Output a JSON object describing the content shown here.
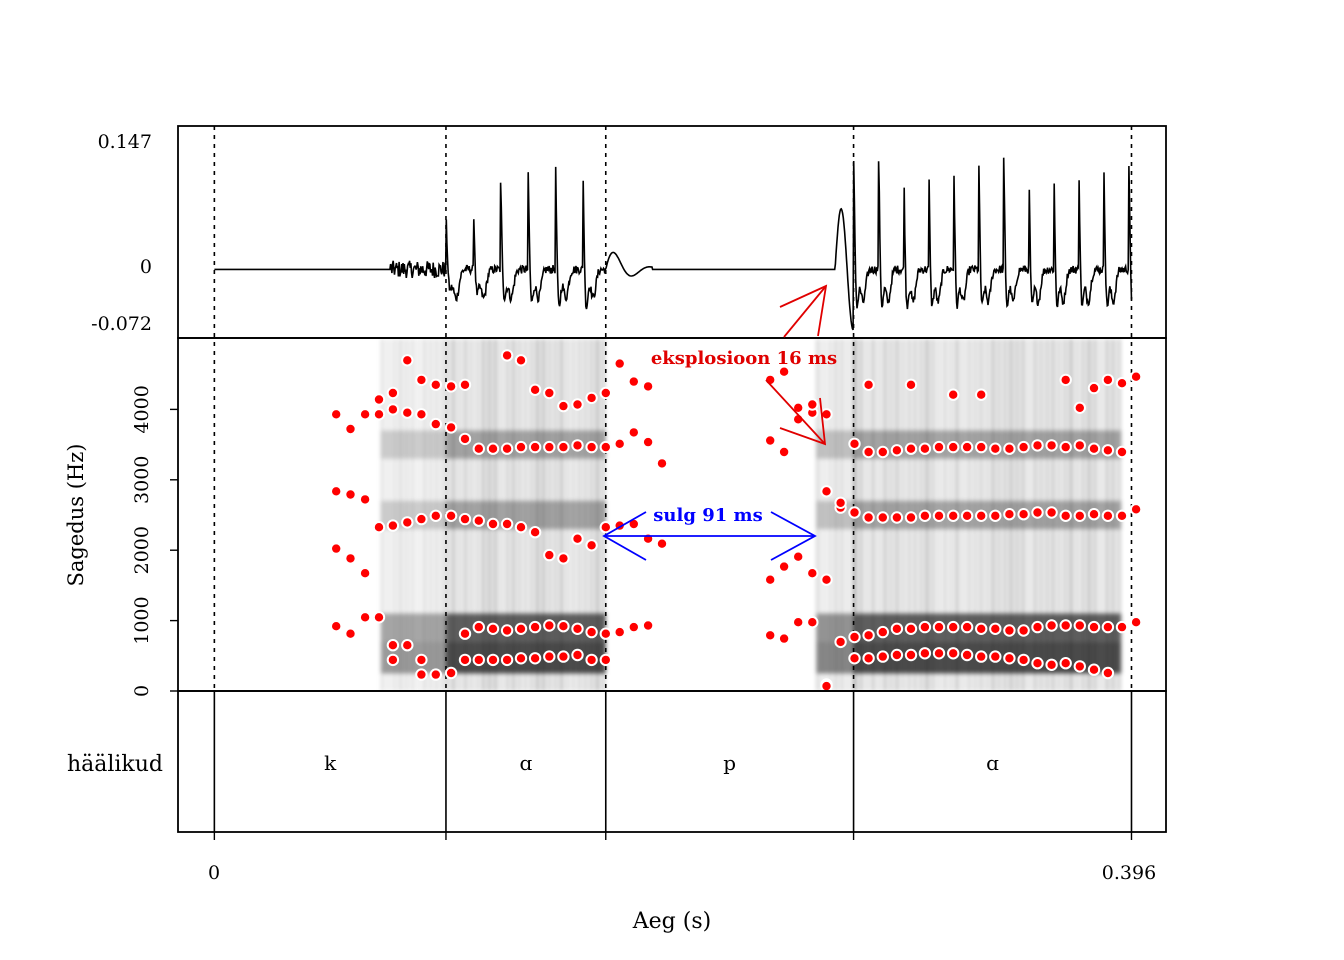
{
  "chart_data": {
    "type": "scatter",
    "description_panels": [
      "waveform",
      "spectrogram",
      "segmentation"
    ],
    "xlabel": "Aeg (s)",
    "xlim": [
      -0.0157,
      0.4109
    ],
    "x_tick_labels": [
      "0",
      "0.396"
    ],
    "x_ticks": [
      0,
      0.396
    ],
    "waveform": {
      "y_tick_labels": [
        "0.147",
        "0",
        "-0.072"
      ],
      "y_ticks": [
        0.147,
        0,
        -0.072
      ],
      "ylim": [
        -0.0793,
        0.1657
      ]
    },
    "spectrogram": {
      "ylabel": "Sagedus (Hz)",
      "ylim": [
        0,
        5000
      ],
      "y_ticks": [
        0,
        1000,
        2000,
        3000,
        4000
      ],
      "y_tick_labels": [
        "0",
        "1000",
        "2000",
        "3000",
        "4000"
      ],
      "formant_color": "#ff0000"
    },
    "segmentation": {
      "tier_label": "häälikud",
      "boundaries": [
        0,
        0.1,
        0.169,
        0.276,
        0.396
      ],
      "segments": [
        {
          "label": "k",
          "start": 0,
          "end": 0.1
        },
        {
          "label": "ɑ",
          "start": 0.1,
          "end": 0.169
        },
        {
          "label": "p",
          "start": 0.169,
          "end": 0.276
        },
        {
          "label": "ɑ",
          "start": 0.276,
          "end": 0.396
        }
      ]
    },
    "annotations": [
      {
        "text": "eksplosioon 16 ms",
        "color": "#e00000",
        "duration_ms": 16
      },
      {
        "text": "sulg 91 ms",
        "color": "#0000ff",
        "duration_ms": 91,
        "from": 0.169,
        "to": 0.26
      }
    ],
    "formants": {
      "F1": [
        [
          0.0526,
          921
        ],
        [
          0.0588,
          814
        ],
        [
          0.0651,
          1047
        ],
        [
          0.0711,
          1047
        ],
        [
          0.0771,
          651
        ],
        [
          0.0833,
          651
        ],
        [
          0.0894,
          442
        ],
        [
          0.0956,
          233
        ],
        [
          0.1022,
          256
        ],
        [
          0.1082,
          814
        ],
        [
          0.1142,
          907
        ],
        [
          0.1203,
          884
        ],
        [
          0.1264,
          860
        ],
        [
          0.1324,
          884
        ],
        [
          0.1385,
          907
        ],
        [
          0.1446,
          930
        ],
        [
          0.1507,
          921
        ],
        [
          0.1568,
          884
        ],
        [
          0.1629,
          837
        ],
        [
          0.169,
          814
        ],
        [
          0.175,
          837
        ],
        [
          0.1811,
          907
        ],
        [
          0.1873,
          930
        ],
        [
          0.24,
          791
        ],
        [
          0.246,
          744
        ],
        [
          0.2521,
          977
        ],
        [
          0.2582,
          977
        ],
        [
          0.2643,
          93
        ],
        [
          0.2704,
          698
        ],
        [
          0.2764,
          767
        ],
        [
          0.2825,
          791
        ],
        [
          0.2886,
          837
        ],
        [
          0.2947,
          884
        ],
        [
          0.3008,
          884
        ],
        [
          0.3068,
          907
        ],
        [
          0.3129,
          907
        ],
        [
          0.319,
          907
        ],
        [
          0.325,
          907
        ],
        [
          0.3311,
          884
        ],
        [
          0.3372,
          884
        ],
        [
          0.3433,
          860
        ],
        [
          0.3494,
          860
        ],
        [
          0.3554,
          907
        ],
        [
          0.3615,
          930
        ],
        [
          0.3676,
          930
        ],
        [
          0.3737,
          930
        ],
        [
          0.3798,
          907
        ],
        [
          0.3858,
          907
        ],
        [
          0.3919,
          907
        ],
        [
          0.398,
          977
        ]
      ],
      "F2": [
        [
          0.0526,
          2023
        ],
        [
          0.0588,
          1884
        ],
        [
          0.0651,
          1674
        ],
        [
          0.0711,
          2326
        ],
        [
          0.0771,
          2349
        ],
        [
          0.0833,
          2395
        ],
        [
          0.0894,
          2442
        ],
        [
          0.0956,
          2488
        ],
        [
          0.1022,
          2488
        ],
        [
          0.1082,
          2442
        ],
        [
          0.1142,
          2419
        ],
        [
          0.1203,
          2372
        ],
        [
          0.1264,
          2372
        ],
        [
          0.1324,
          2326
        ],
        [
          0.1385,
          2256
        ],
        [
          0.1446,
          1930
        ],
        [
          0.1507,
          1884
        ],
        [
          0.1568,
          2163
        ],
        [
          0.1629,
          2070
        ],
        [
          0.169,
          2326
        ],
        [
          0.175,
          2349
        ],
        [
          0.1811,
          2372
        ],
        [
          0.1873,
          2163
        ],
        [
          0.1933,
          2093
        ],
        [
          0.24,
          1581
        ],
        [
          0.246,
          1767
        ],
        [
          0.2521,
          1907
        ],
        [
          0.2582,
          1674
        ],
        [
          0.2643,
          1581
        ],
        [
          0.2704,
          2605
        ],
        [
          0.2764,
          2535
        ],
        [
          0.2825,
          2465
        ],
        [
          0.2886,
          2465
        ],
        [
          0.2947,
          2465
        ],
        [
          0.3008,
          2465
        ],
        [
          0.3068,
          2488
        ],
        [
          0.3129,
          2488
        ],
        [
          0.319,
          2488
        ],
        [
          0.325,
          2488
        ],
        [
          0.3311,
          2488
        ],
        [
          0.3372,
          2488
        ],
        [
          0.3433,
          2512
        ],
        [
          0.3494,
          2512
        ],
        [
          0.3554,
          2535
        ],
        [
          0.3615,
          2535
        ],
        [
          0.3676,
          2488
        ],
        [
          0.3737,
          2488
        ],
        [
          0.3798,
          2512
        ],
        [
          0.3858,
          2488
        ],
        [
          0.3919,
          2488
        ],
        [
          0.398,
          2581
        ]
      ],
      "F3": [
        [
          0.0526,
          2837
        ],
        [
          0.0588,
          2791
        ],
        [
          0.0651,
          2721
        ],
        [
          0.0711,
          3930
        ],
        [
          0.0771,
          4000
        ],
        [
          0.0833,
          3953
        ],
        [
          0.0894,
          3930
        ],
        [
          0.0956,
          3791
        ],
        [
          0.1022,
          3744
        ],
        [
          0.1082,
          3581
        ],
        [
          0.1142,
          3442
        ],
        [
          0.1203,
          3442
        ],
        [
          0.1264,
          3442
        ],
        [
          0.1324,
          3465
        ],
        [
          0.1385,
          3465
        ],
        [
          0.1446,
          3465
        ],
        [
          0.1507,
          3465
        ],
        [
          0.1568,
          3488
        ],
        [
          0.1629,
          3465
        ],
        [
          0.169,
          3465
        ],
        [
          0.175,
          3512
        ],
        [
          0.1811,
          3674
        ],
        [
          0.1873,
          3535
        ],
        [
          0.1933,
          3233
        ],
        [
          0.24,
          3558
        ],
        [
          0.246,
          3395
        ],
        [
          0.2521,
          3860
        ],
        [
          0.2582,
          3953
        ],
        [
          0.2643,
          2837
        ],
        [
          0.2704,
          2674
        ],
        [
          0.2764,
          3512
        ],
        [
          0.2825,
          3395
        ],
        [
          0.2886,
          3395
        ],
        [
          0.2947,
          3419
        ],
        [
          0.3008,
          3442
        ],
        [
          0.3068,
          3442
        ],
        [
          0.3129,
          3465
        ],
        [
          0.319,
          3465
        ],
        [
          0.325,
          3465
        ],
        [
          0.3311,
          3465
        ],
        [
          0.3372,
          3442
        ],
        [
          0.3433,
          3442
        ],
        [
          0.3494,
          3465
        ],
        [
          0.3554,
          3488
        ],
        [
          0.3615,
          3488
        ],
        [
          0.3676,
          3465
        ],
        [
          0.3737,
          3488
        ],
        [
          0.3798,
          3442
        ],
        [
          0.3858,
          3419
        ],
        [
          0.3919,
          3395
        ]
      ],
      "F4": [
        [
          0.0526,
          3930
        ],
        [
          0.0588,
          3721
        ],
        [
          0.0651,
          3930
        ],
        [
          0.0711,
          4140
        ],
        [
          0.0771,
          4233
        ],
        [
          0.0833,
          4698
        ],
        [
          0.0894,
          4419
        ],
        [
          0.0956,
          4349
        ],
        [
          0.1022,
          4326
        ],
        [
          0.1082,
          4349
        ],
        [
          0.1264,
          4767
        ],
        [
          0.1324,
          4698
        ],
        [
          0.1385,
          4279
        ],
        [
          0.1446,
          4233
        ],
        [
          0.1507,
          4047
        ],
        [
          0.1568,
          4070
        ],
        [
          0.1629,
          4163
        ],
        [
          0.169,
          4233
        ],
        [
          0.175,
          4651
        ],
        [
          0.1811,
          4395
        ],
        [
          0.1873,
          4326
        ],
        [
          0.24,
          4419
        ],
        [
          0.246,
          4535
        ],
        [
          0.2521,
          4023
        ],
        [
          0.2582,
          4070
        ],
        [
          0.2643,
          3930
        ],
        [
          0.2825,
          4349
        ],
        [
          0.3008,
          4349
        ],
        [
          0.319,
          4209
        ],
        [
          0.3311,
          4209
        ],
        [
          0.3676,
          4419
        ],
        [
          0.3737,
          4023
        ],
        [
          0.3798,
          4302
        ],
        [
          0.3858,
          4419
        ],
        [
          0.3919,
          4372
        ],
        [
          0.398,
          4465
        ]
      ],
      "F0": [
        [
          0.0771,
          442
        ],
        [
          0.0894,
          233
        ],
        [
          0.1082,
          442
        ],
        [
          0.1142,
          442
        ],
        [
          0.1203,
          442
        ],
        [
          0.1264,
          442
        ],
        [
          0.1324,
          465
        ],
        [
          0.1385,
          465
        ],
        [
          0.1446,
          488
        ],
        [
          0.1507,
          488
        ],
        [
          0.1568,
          512
        ],
        [
          0.1629,
          442
        ],
        [
          0.169,
          442
        ],
        [
          0.2643,
          70
        ],
        [
          0.2764,
          465
        ],
        [
          0.2825,
          465
        ],
        [
          0.2886,
          488
        ],
        [
          0.2947,
          512
        ],
        [
          0.3008,
          512
        ],
        [
          0.3068,
          535
        ],
        [
          0.3129,
          535
        ],
        [
          0.319,
          535
        ],
        [
          0.325,
          512
        ],
        [
          0.3311,
          488
        ],
        [
          0.3372,
          488
        ],
        [
          0.3433,
          465
        ],
        [
          0.3494,
          442
        ],
        [
          0.3554,
          395
        ],
        [
          0.3615,
          372
        ],
        [
          0.3676,
          395
        ],
        [
          0.3737,
          349
        ],
        [
          0.3798,
          302
        ],
        [
          0.3858,
          256
        ]
      ]
    }
  }
}
